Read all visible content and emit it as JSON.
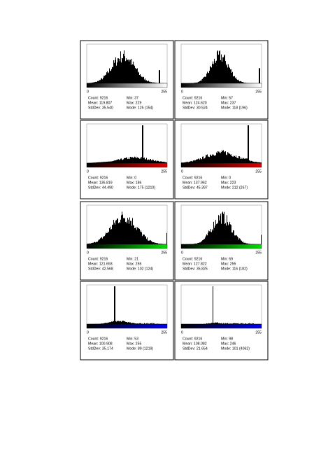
{
  "panels": [
    {
      "axis_min": "0",
      "axis_max": "255",
      "count": "Count: 9216",
      "mean": "Mean: 119.807",
      "stddev": "StdDev: 35.540",
      "min": "Min: 37",
      "max": "Max: 229",
      "mode": "Mode: 125 (154)"
    },
    {
      "axis_min": "0",
      "axis_max": "255",
      "count": "Count: 9216",
      "mean": "Mean: 124.620",
      "stddev": "StdDev: 30.524",
      "min": "Min: 57",
      "max": "Max: 237",
      "mode": "Mode: 118 (196)"
    },
    {
      "axis_min": "0",
      "axis_max": "255",
      "count": "Count: 9216",
      "mean": "Mean: 136.819",
      "stddev": "StdDev: 44.490",
      "min": "Min: 0",
      "max": "Max: 186",
      "mode": "Mode: 175 (1210)"
    },
    {
      "axis_min": "0",
      "axis_max": "255",
      "count": "Count: 9216",
      "mean": "Mean: 137.962",
      "stddev": "StdDev: 45.397",
      "min": "Min: 0",
      "max": "Max: 223",
      "mode": "Mode: 212 (267)"
    },
    {
      "axis_min": "0",
      "axis_max": "255",
      "count": "Count: 9216",
      "mean": "Mean: 121.693",
      "stddev": "StdDev: 42.568",
      "min": "Min: 21",
      "max": "Max: 255",
      "mode": "Mode: 102 (124)"
    },
    {
      "axis_min": "0",
      "axis_max": "255",
      "count": "Count: 9216",
      "mean": "Mean: 127.822",
      "stddev": "StdDev: 35.825",
      "min": "Min: 69",
      "max": "Max: 255",
      "mode": "Mode: 116 (182)"
    },
    {
      "axis_min": "0",
      "axis_max": "255",
      "count": "Count: 9216",
      "mean": "Mean: 100.908",
      "stddev": "StdDev: 35.174",
      "min": "Min: 53",
      "max": "Max: 255",
      "mode": "Mode: 89 (1219)"
    },
    {
      "axis_min": "0",
      "axis_max": "255",
      "count": "Count: 9216",
      "mean": "Mean: 108.082",
      "stddev": "StdDev: 21.654",
      "min": "Min: 98",
      "max": "Max: 246",
      "mode": "Mode: 101 (4062)"
    }
  ]
}
